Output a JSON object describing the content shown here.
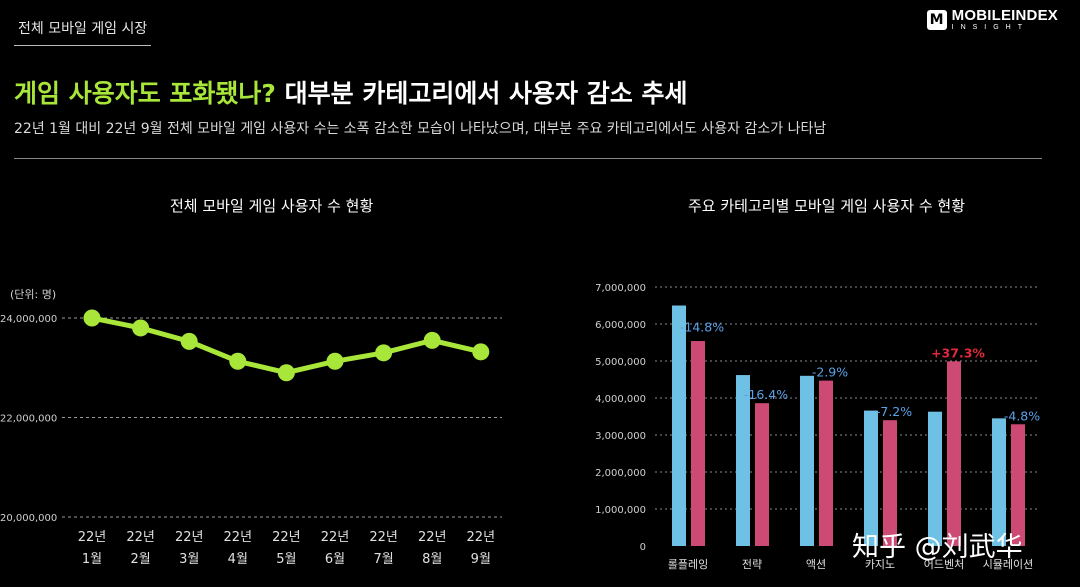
{
  "header": {
    "tag": "전체 모바일 게임 시장",
    "logo_mark": "M",
    "logo_main": "MOBILEINDEX",
    "logo_sub": "INSIGHT"
  },
  "headline": {
    "highlight": "게임 사용자도 포화됐나?",
    "rest": " 대부분 카테고리에서 사용자 감소 추세"
  },
  "subtitle": "22년 1월 대비 22년 9월 전체 모바일 게임 사용자 수는 소폭 감소한 모습이 나타났으며, 대부분 주요 카테고리에서도 사용자 감소가 나타남",
  "watermark": "知乎 @刘武华",
  "chart_data": [
    {
      "type": "line",
      "title": "전체 모바일 게임 사용자 수 현황",
      "unit_label": "(단위: 명)",
      "categories": [
        [
          "22년",
          "1월"
        ],
        [
          "22년",
          "2월"
        ],
        [
          "22년",
          "3월"
        ],
        [
          "22년",
          "4월"
        ],
        [
          "22년",
          "5월"
        ],
        [
          "22년",
          "6월"
        ],
        [
          "22년",
          "7월"
        ],
        [
          "22년",
          "8월"
        ],
        [
          "22년",
          "9월"
        ]
      ],
      "values": [
        24000000,
        23800000,
        23530000,
        23130000,
        22900000,
        23130000,
        23300000,
        23550000,
        23320000
      ],
      "yticks": [
        20000000,
        22000000,
        24000000
      ],
      "ytick_labels": [
        "20,000,000",
        "22,000,000",
        "24,000,000"
      ],
      "ylim": [
        20000000,
        24400000
      ],
      "line_color": "#a8e63a",
      "grid": true
    },
    {
      "type": "bar",
      "title": "주요 카테고리별 모바일 게임 사용자 수 현황",
      "categories": [
        "롤플레잉",
        "전략",
        "액션",
        "카지노",
        "어드벤처",
        "시뮬레이션"
      ],
      "series": [
        {
          "values": [
            6500000,
            4620000,
            4600000,
            3660000,
            3630000,
            3450000
          ],
          "color": "#6ec1e4"
        },
        {
          "values": [
            5540000,
            3860000,
            4470000,
            3400000,
            4990000,
            3290000
          ],
          "color": "#cc4a74"
        }
      ],
      "change_labels": [
        "-14.8%",
        "-16.4%",
        "-2.9%",
        "-7.2%",
        "+37.3%",
        "-4.8%"
      ],
      "yticks": [
        0,
        1000000,
        2000000,
        3000000,
        4000000,
        5000000,
        6000000,
        7000000
      ],
      "ytick_labels": [
        "0",
        "1,000,000",
        "2,000,000",
        "3,000,000",
        "4,000,000",
        "5,000,000",
        "6,000,000",
        "7,000,000"
      ],
      "ylim": [
        0,
        7000000
      ],
      "change_colors": {
        "negative": "#5aa0e6",
        "positive": "#e0293a"
      },
      "grid": true
    }
  ]
}
